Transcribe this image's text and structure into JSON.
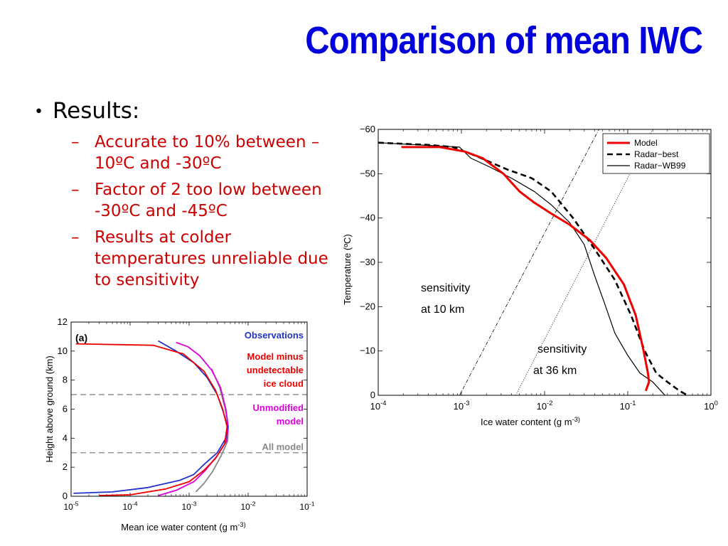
{
  "slide": {
    "title": "Comparison of mean IWC",
    "bullet": "Results:",
    "bullet_marker": "•",
    "dash_marker": "–",
    "sub_bullets": [
      "Accurate to 10% between –10ºC and -30ºC",
      "Factor of 2 too low between -30ºC and -45ºC",
      "Results at colder temperatures unreliable due to sensitivity"
    ]
  },
  "colors": {
    "title": "#0000dd",
    "sub_bullets": "#cc0000"
  },
  "chart_data": [
    {
      "type": "line",
      "xlabel": "Ice water content (g m^-3)",
      "ylabel": "Temperature (ºC)",
      "x_scale": "log",
      "xlim": [
        0.0001,
        1
      ],
      "ylim": [
        0,
        -60
      ],
      "xticks": [
        "10^-4",
        "10^-3",
        "10^-2",
        "10^-1",
        "10^0"
      ],
      "yticks": [
        "0",
        "−10",
        "−20",
        "−30",
        "−40",
        "−50",
        "−60"
      ],
      "legend_position": "top-right",
      "annotations": [
        {
          "lines": [
            "sensitivity",
            "at 10 km"
          ]
        },
        {
          "lines": [
            "sensitivity",
            "at 36 km"
          ]
        }
      ],
      "series": [
        {
          "name": "Model",
          "color": "#ee0000",
          "style": "solid-thick",
          "points": [
            [
              0.00019,
              -56
            ],
            [
              0.00055,
              -56
            ],
            [
              0.0011,
              -55
            ],
            [
              0.0018,
              -53.5
            ],
            [
              0.0032,
              -50
            ],
            [
              0.005,
              -46
            ],
            [
              0.0075,
              -43.5
            ],
            [
              0.012,
              -41
            ],
            [
              0.02,
              -38.5
            ],
            [
              0.035,
              -35
            ],
            [
              0.055,
              -31
            ],
            [
              0.09,
              -25
            ],
            [
              0.125,
              -18
            ],
            [
              0.155,
              -10
            ],
            [
              0.175,
              -5
            ],
            [
              0.18,
              -3
            ],
            [
              0.165,
              -1
            ]
          ]
        },
        {
          "name": "Radar−best",
          "color": "#000000",
          "style": "dashed",
          "points": [
            [
              0.0001,
              -57
            ],
            [
              0.0004,
              -56.5
            ],
            [
              0.0008,
              -56
            ],
            [
              0.0015,
              -54
            ],
            [
              0.0035,
              -51
            ],
            [
              0.007,
              -49
            ],
            [
              0.012,
              -46
            ],
            [
              0.022,
              -40
            ],
            [
              0.04,
              -33
            ],
            [
              0.07,
              -26
            ],
            [
              0.11,
              -18
            ],
            [
              0.16,
              -10
            ],
            [
              0.22,
              -5
            ],
            [
              0.3,
              -3
            ],
            [
              0.42,
              -1
            ],
            [
              0.52,
              0
            ]
          ]
        },
        {
          "name": "Radar−WB99",
          "color": "#000000",
          "style": "solid-thin",
          "points": [
            [
              0.0001,
              -57
            ],
            [
              0.0005,
              -56.3
            ],
            [
              0.00095,
              -56
            ],
            [
              0.0013,
              -53.5
            ],
            [
              0.0022,
              -51.5
            ],
            [
              0.004,
              -49
            ],
            [
              0.0075,
              -46
            ],
            [
              0.012,
              -43
            ],
            [
              0.02,
              -39
            ],
            [
              0.03,
              -34
            ],
            [
              0.04,
              -27
            ],
            [
              0.052,
              -21
            ],
            [
              0.07,
              -14
            ],
            [
              0.1,
              -9
            ],
            [
              0.14,
              -5
            ],
            [
              0.2,
              -3
            ],
            [
              0.28,
              0
            ]
          ]
        },
        {
          "name": "sensitivity at 10 km",
          "color": "#000000",
          "style": "dash-dot",
          "points": [
            [
              0.00095,
              0
            ],
            [
              0.045,
              -60
            ]
          ]
        },
        {
          "name": "sensitivity at 36 km",
          "color": "#000000",
          "style": "dotted",
          "points": [
            [
              0.0045,
              0
            ],
            [
              0.2,
              -60
            ]
          ]
        }
      ]
    },
    {
      "type": "line",
      "panel_label": "(a)",
      "xlabel": "Mean ice water content (g m^-3)",
      "ylabel": "Height above ground (km)",
      "x_scale": "log",
      "xlim": [
        1e-05,
        0.1
      ],
      "ylim": [
        0,
        12
      ],
      "xticks": [
        "10^-5",
        "10^-4",
        "10^-3",
        "10^-2",
        "10^-1"
      ],
      "yticks": [
        "0",
        "2",
        "4",
        "6",
        "8",
        "10",
        "12"
      ],
      "hlines": [
        3,
        7
      ],
      "legend": [
        {
          "lines": [
            "Observations"
          ],
          "color": "#2233cc"
        },
        {
          "lines": [
            "Model minus",
            "undetectable",
            "ice cloud"
          ],
          "color": "#ee0000"
        },
        {
          "lines": [
            "Unmodified",
            "model"
          ],
          "color": "#dd00dd"
        },
        {
          "lines": [
            "All model"
          ],
          "color": "#888888"
        }
      ],
      "series": [
        {
          "name": "Observations",
          "color": "#2233cc",
          "points": [
            [
              1.1e-05,
              0.2
            ],
            [
              5e-05,
              0.3
            ],
            [
              0.0002,
              0.6
            ],
            [
              0.0007,
              1.1
            ],
            [
              0.0012,
              1.5
            ],
            [
              0.0018,
              2.2
            ],
            [
              0.003,
              3.0
            ],
            [
              0.0042,
              4.0
            ],
            [
              0.0045,
              4.8
            ],
            [
              0.0038,
              5.8
            ],
            [
              0.003,
              7.0
            ],
            [
              0.002,
              8.2
            ],
            [
              0.0012,
              9.2
            ],
            [
              0.0006,
              10.0
            ],
            [
              0.0003,
              10.7
            ]
          ]
        },
        {
          "name": "Model minus undetectable ice cloud",
          "color": "#ee0000",
          "points": [
            [
              3e-05,
              0.05
            ],
            [
              0.0001,
              0.1
            ],
            [
              0.0004,
              0.5
            ],
            [
              0.001,
              1.0
            ],
            [
              0.0018,
              1.8
            ],
            [
              0.0028,
              2.6
            ],
            [
              0.004,
              3.6
            ],
            [
              0.0044,
              4.8
            ],
            [
              0.0037,
              6.0
            ],
            [
              0.0028,
              7.3
            ],
            [
              0.0018,
              8.6
            ],
            [
              0.0008,
              9.8
            ],
            [
              0.00025,
              10.4
            ],
            [
              1.2e-05,
              10.5
            ]
          ]
        },
        {
          "name": "Unmodified model",
          "color": "#dd00dd",
          "points": [
            [
              0.0003,
              0.05
            ],
            [
              0.0006,
              0.4
            ],
            [
              0.0012,
              1.0
            ],
            [
              0.0019,
              1.8
            ],
            [
              0.003,
              2.8
            ],
            [
              0.0043,
              3.8
            ],
            [
              0.0046,
              4.8
            ],
            [
              0.0042,
              6.0
            ],
            [
              0.0034,
              7.5
            ],
            [
              0.0024,
              8.7
            ],
            [
              0.0015,
              9.7
            ],
            [
              0.00095,
              10.3
            ],
            [
              0.0006,
              10.6
            ]
          ]
        },
        {
          "name": "All model",
          "color": "#888888",
          "points": [
            [
              0.0013,
              0.3
            ],
            [
              0.0018,
              0.9
            ],
            [
              0.0025,
              1.7
            ],
            [
              0.0035,
              2.8
            ],
            [
              0.0045,
              3.8
            ],
            [
              0.0046,
              4.8
            ],
            [
              0.0041,
              6.0
            ],
            [
              0.0033,
              7.5
            ],
            [
              0.0024,
              8.8
            ]
          ]
        }
      ]
    }
  ]
}
